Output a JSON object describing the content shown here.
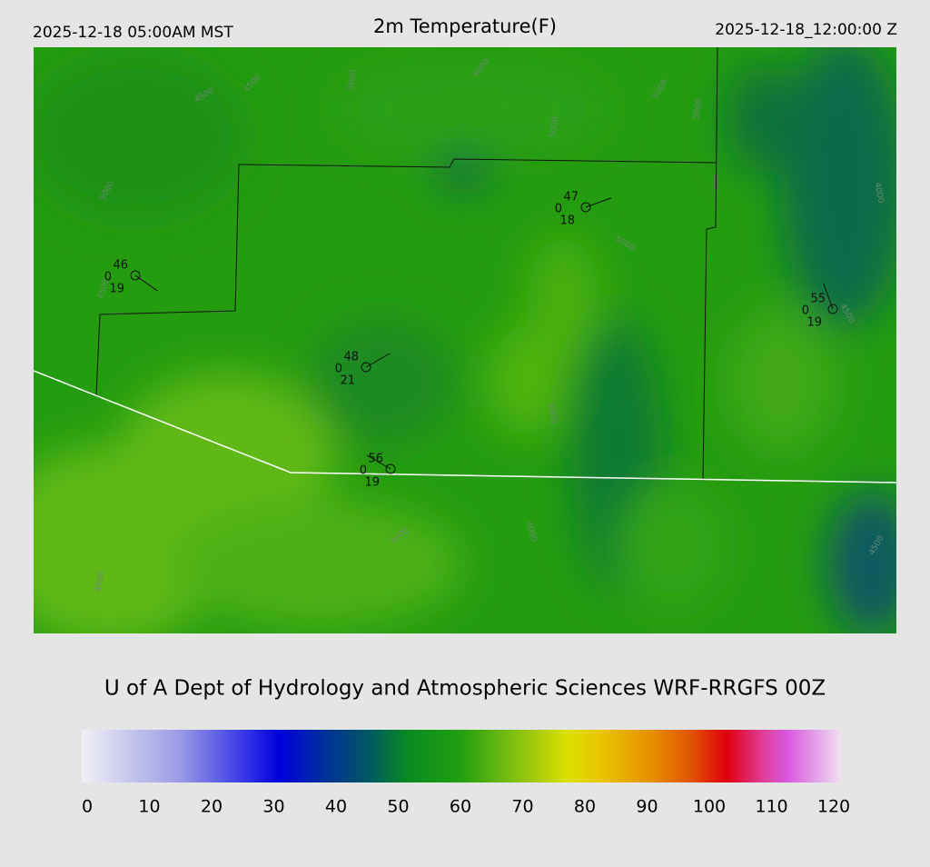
{
  "header": {
    "local_time": "2025-12-18 05:00AM MST",
    "title": "2m Temperature(F)",
    "valid_time": "2025-12-18_12:00:00 Z"
  },
  "stations": [
    {
      "temperature": "46",
      "cloud": "0",
      "dewpoint": "19"
    },
    {
      "temperature": "47",
      "cloud": "0",
      "dewpoint": "18"
    },
    {
      "temperature": "55",
      "cloud": "0",
      "dewpoint": "19"
    },
    {
      "temperature": "48",
      "cloud": "0",
      "dewpoint": "21"
    },
    {
      "temperature": "56",
      "cloud": "0",
      "dewpoint": "19"
    }
  ],
  "contour_labels": [
    "5000",
    "4500",
    "4500",
    "5000",
    "4000",
    "5000",
    "5000",
    "5000",
    "4000",
    "4500",
    "5000",
    "4500",
    "4000",
    "4000",
    "5000",
    "4000",
    "4500"
  ],
  "footer": {
    "credit": "U of A Dept of Hydrology and Atmospheric Sciences WRF-RRGFS 00Z"
  },
  "colorbar": {
    "ticks": [
      0,
      10,
      20,
      30,
      40,
      50,
      60,
      70,
      80,
      90,
      100,
      110,
      120
    ],
    "range": [
      0,
      120
    ]
  }
}
